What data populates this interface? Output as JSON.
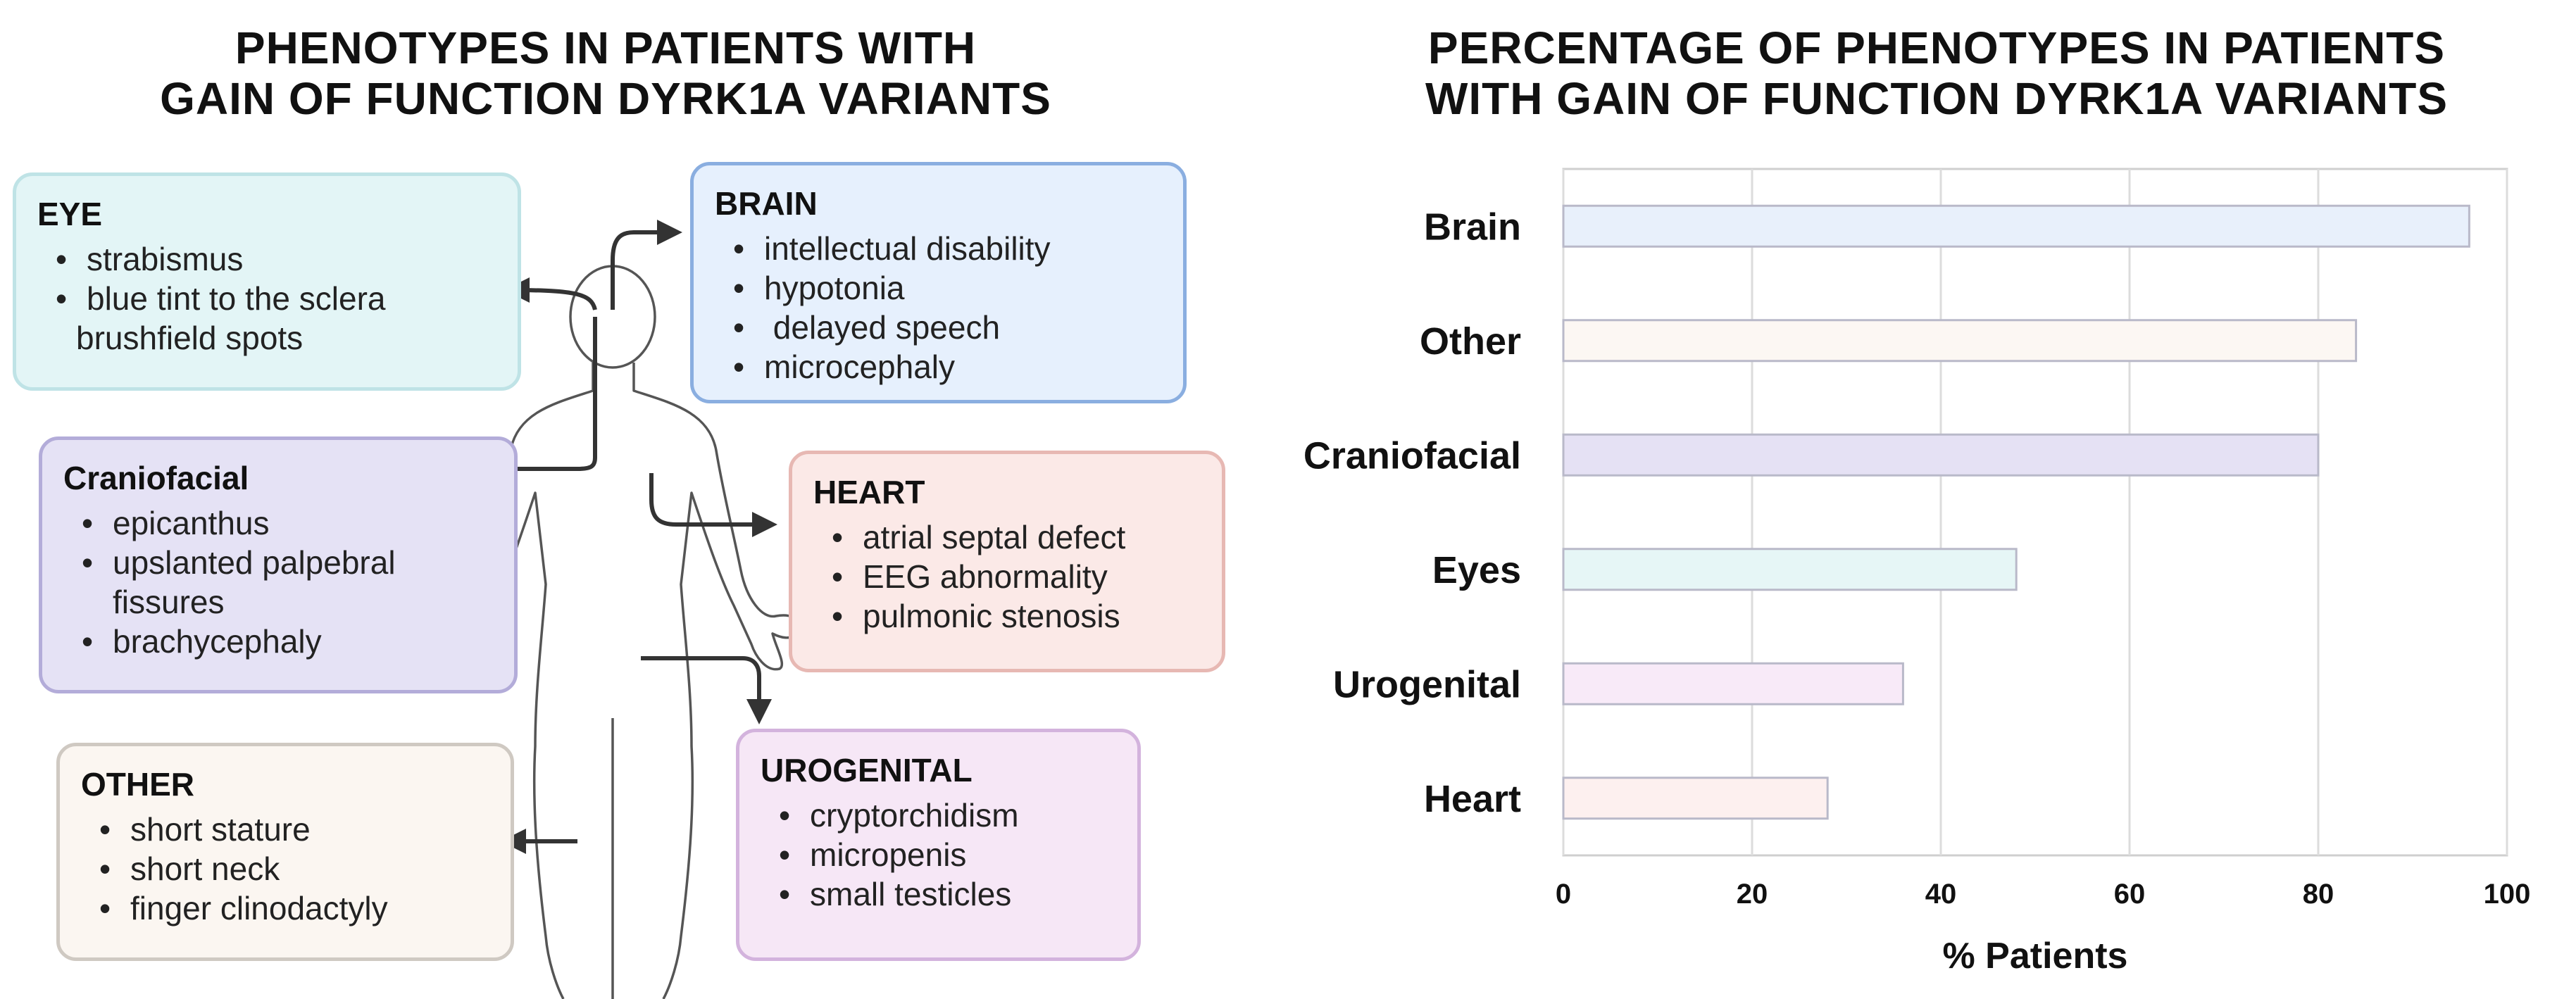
{
  "left_panel": {
    "title_line1": "PHENOTYPES IN PATIENTS WITH",
    "title_line2": "GAIN OF FUNCTION DYRK1A VARIANTS",
    "boxes": {
      "eye": {
        "heading": "EYE",
        "items": [
          "strabismus",
          "blue tint to the sclera",
          "brushfield spots"
        ],
        "color": "#e3f5f6"
      },
      "brain": {
        "heading": "BRAIN",
        "items": [
          "intellectual disability",
          "hypotonia",
          " delayed speech",
          "microcephaly"
        ],
        "color": "#e6f0fd"
      },
      "craniofacial": {
        "heading": "Craniofacial",
        "items": [
          "epicanthus",
          "upslanted palpebral",
          "fissures",
          "brachycephaly"
        ],
        "color": "#e5e2f5"
      },
      "heart": {
        "heading": "HEART",
        "items": [
          "atrial septal defect",
          "EEG abnormality",
          "pulmonic stenosis"
        ],
        "color": "#fbe9e7"
      },
      "other": {
        "heading": "OTHER",
        "items": [
          "short stature",
          "short neck",
          "finger clinodactyly"
        ],
        "color": "#fbf6f1"
      },
      "urogenital": {
        "heading": "UROGENITAL",
        "items": [
          "cryptorchidism",
          "micropenis",
          "small testicles"
        ],
        "color": "#f6e7f6"
      }
    }
  },
  "chart_data": {
    "type": "bar",
    "orientation": "horizontal",
    "title": "PERCENTAGE OF PHENOTYPES IN PATIENTS WITH GAIN OF FUNCTION DYRK1A VARIANTS",
    "title_line1": "PERCENTAGE OF PHENOTYPES IN PATIENTS",
    "title_line2": "WITH GAIN OF FUNCTION DYRK1A VARIANTS",
    "categories": [
      "Brain",
      "Other",
      "Craniofacial",
      "Eyes",
      "Urogenital",
      "Heart"
    ],
    "values": [
      96,
      84,
      80,
      48,
      36,
      28
    ],
    "colors": [
      "#e8f0fb",
      "#fcf7f3",
      "#e5e1f4",
      "#e6f6f6",
      "#f8eaf8",
      "#fdf0ef"
    ],
    "xlabel": "% Patients",
    "ylabel": "",
    "xlim": [
      0,
      100
    ],
    "xticks": [
      "0",
      "20",
      "40",
      "60",
      "80",
      "100"
    ],
    "grid": true
  }
}
